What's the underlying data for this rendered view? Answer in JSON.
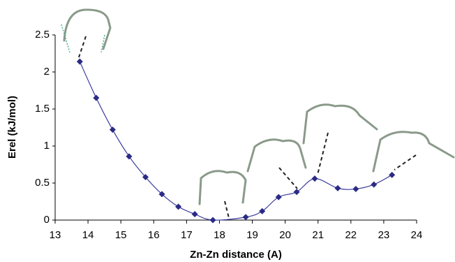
{
  "chart_data": {
    "type": "line",
    "xlabel": "Zn-Zn distance (A)",
    "ylabel": "Erel (kJ/mol)",
    "x": [
      13.75,
      14.25,
      14.75,
      15.25,
      15.75,
      16.25,
      16.75,
      17.25,
      17.8,
      18.8,
      19.3,
      19.8,
      20.35,
      20.9,
      21.6,
      22.15,
      22.7,
      23.25
    ],
    "values": [
      2.14,
      1.65,
      1.22,
      0.86,
      0.58,
      0.35,
      0.18,
      0.08,
      0,
      0.04,
      0.12,
      0.31,
      0.38,
      0.56,
      0.43,
      0.42,
      0.48,
      0.61
    ],
    "color": "#2b2b85",
    "line_color": "#3b3ba0",
    "xlim": [
      13,
      24
    ],
    "xticks": [
      13,
      14,
      15,
      16,
      17,
      18,
      19,
      20,
      21,
      22,
      23,
      24
    ],
    "ylim": [
      0,
      2.5
    ],
    "yticks": [
      0,
      0.5,
      1,
      1.5,
      2,
      2.5
    ],
    "grid": false
  }
}
